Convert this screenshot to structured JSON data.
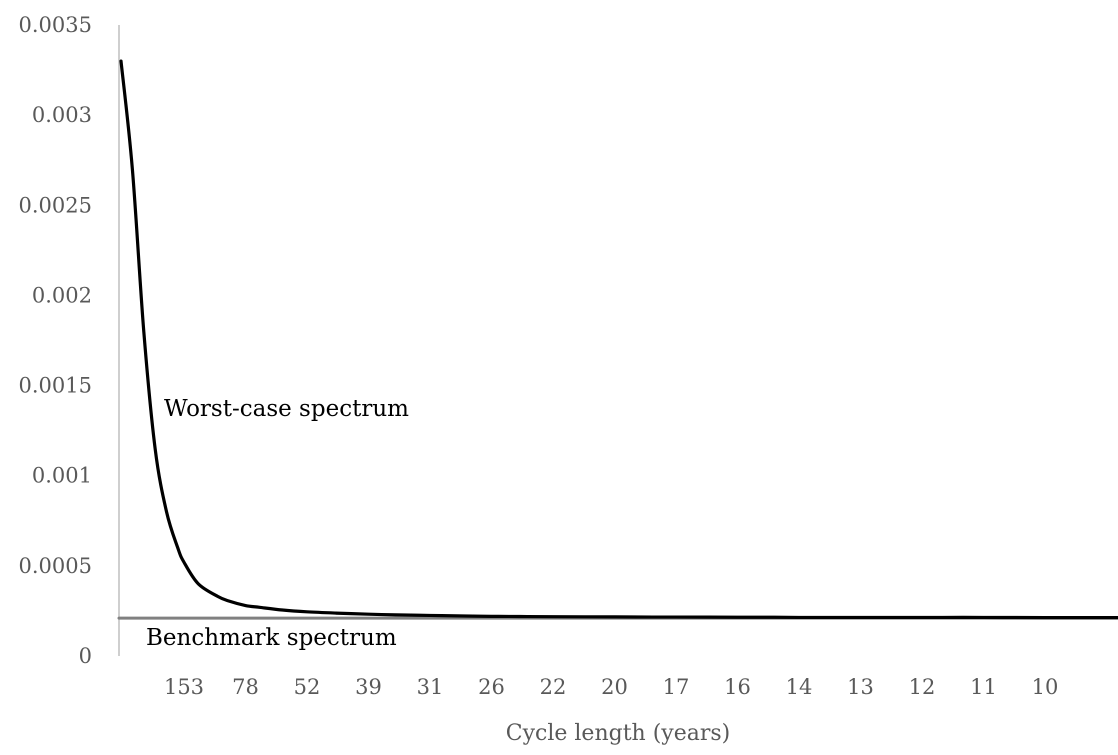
{
  "chart_data": {
    "type": "line",
    "title": "",
    "xlabel": "Cycle length (years)",
    "ylabel": "",
    "ylim": [
      0,
      0.0035
    ],
    "y_ticks": [
      "0",
      "0.0005",
      "0.001",
      "0.0015",
      "0.002",
      "0.0025",
      "0.003",
      "0.0035"
    ],
    "x_tick_labels": [
      "153",
      "78",
      "52",
      "39",
      "31",
      "26",
      "22",
      "20",
      "17",
      "16",
      "14",
      "13",
      "12",
      "11",
      "10"
    ],
    "grid": false,
    "legend": "none",
    "series": [
      {
        "name": "Worst-case spectrum",
        "color": "#000000",
        "x_cycle_years": [
          1000,
          500,
          333,
          250,
          200,
          167,
          153,
          125,
          100,
          90,
          78,
          70,
          60,
          52,
          45,
          39,
          35,
          31,
          28,
          26,
          24,
          22,
          20,
          18,
          17,
          16,
          15,
          14,
          13,
          12,
          11,
          10
        ],
        "values": [
          0.0033,
          0.0027,
          0.0018,
          0.00115,
          0.0008,
          0.0006,
          0.00052,
          0.0004,
          0.00033,
          0.000305,
          0.00028,
          0.00027,
          0.000255,
          0.000245,
          0.000238,
          0.000232,
          0.000228,
          0.000225,
          0.000222,
          0.00022,
          0.000219,
          0.000218,
          0.000217,
          0.000216,
          0.000216,
          0.000215,
          0.000215,
          0.000214,
          0.000214,
          0.000214,
          0.000214,
          0.000213
        ]
      },
      {
        "name": "Benchmark spectrum",
        "color": "#808080",
        "x_cycle_years": [
          1000,
          10
        ],
        "values": [
          0.00021,
          0.00021
        ]
      }
    ],
    "annotations": [
      {
        "text": "Worst-case spectrum",
        "target": "Worst-case spectrum"
      },
      {
        "text": "Benchmark spectrum",
        "target": "Benchmark spectrum"
      }
    ]
  }
}
